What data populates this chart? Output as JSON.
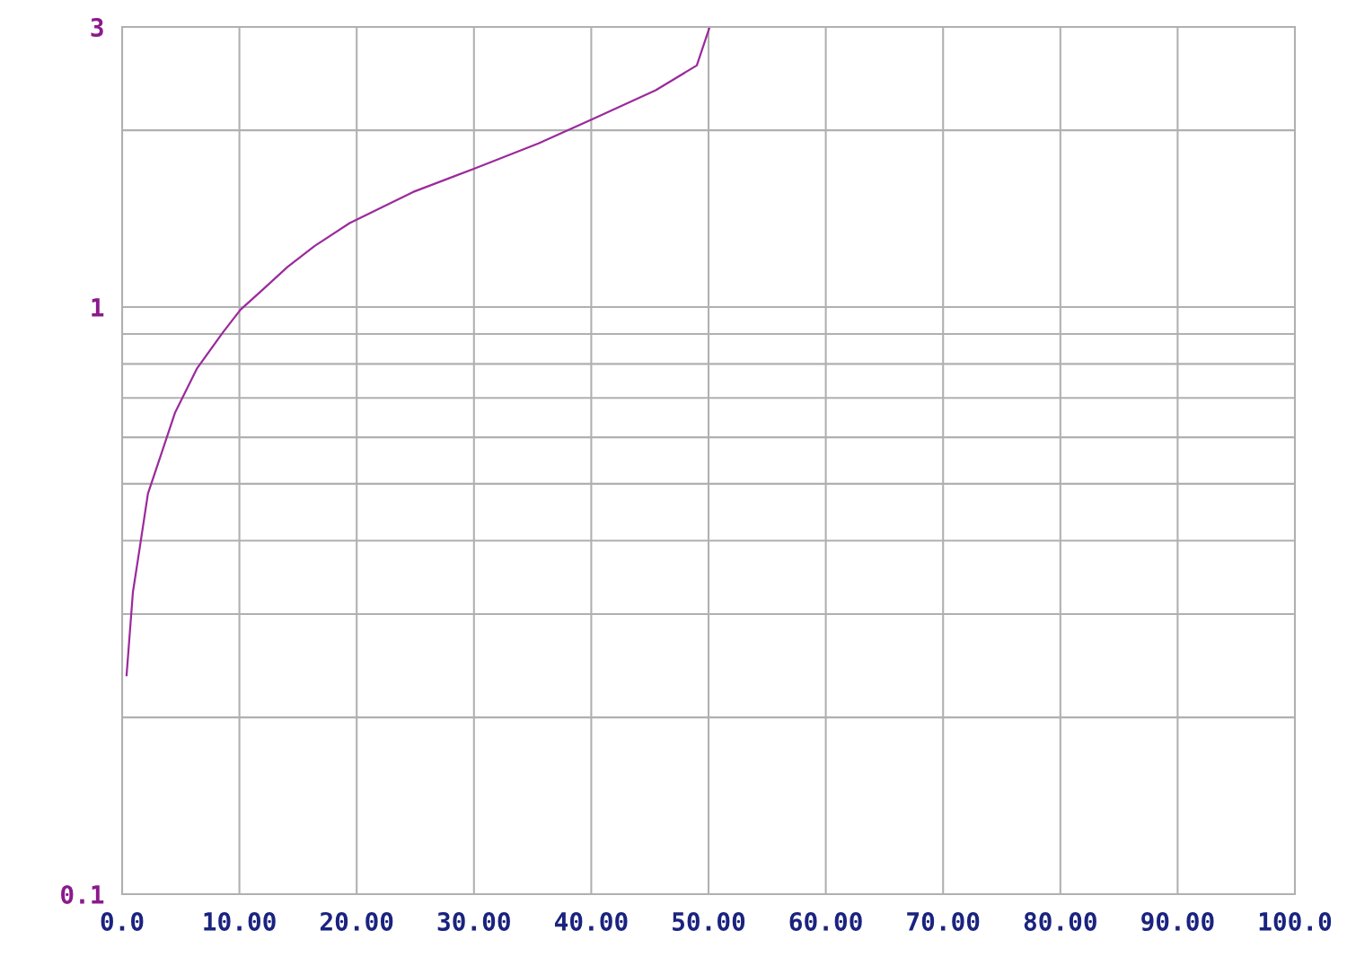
{
  "chart_data": {
    "type": "line",
    "log": "y",
    "grid": true,
    "marker": "none",
    "line_style": "solid",
    "x": [
      0.38,
      0.92,
      1.45,
      2.2,
      3.1,
      4.5,
      6.4,
      8.6,
      10.1,
      11.8,
      14.1,
      16.4,
      19.4,
      24.8,
      30.0,
      35.5,
      40.1,
      45.5,
      49.0,
      50.1
    ],
    "series": [
      {
        "color": "#9b2a9b",
        "values": [
          0.236,
          0.327,
          0.383,
          0.481,
          0.544,
          0.66,
          0.787,
          0.906,
          0.99,
          1.062,
          1.17,
          1.27,
          1.39,
          1.57,
          1.72,
          1.9,
          2.09,
          2.34,
          2.58,
          3.0
        ]
      }
    ],
    "xlim": [
      0,
      100
    ],
    "xticks": [
      {
        "value": 0,
        "label": "0.0"
      },
      {
        "value": 10,
        "label": "10.00"
      },
      {
        "value": 20,
        "label": "20.00"
      },
      {
        "value": 30,
        "label": "30.00"
      },
      {
        "value": 40,
        "label": "40.00"
      },
      {
        "value": 50,
        "label": "50.00"
      },
      {
        "value": 60,
        "label": "60.00"
      },
      {
        "value": 70,
        "label": "70.00"
      },
      {
        "value": 80,
        "label": "80.00"
      },
      {
        "value": 90,
        "label": "90.00"
      },
      {
        "value": 100,
        "label": "100.0"
      }
    ],
    "ylim": [
      0.1,
      3
    ],
    "yticks": [
      0.1,
      {
        "value": 0.2,
        "label": null
      },
      {
        "value": 0.3,
        "label": null
      },
      {
        "value": 0.4,
        "label": null
      },
      {
        "value": 0.5,
        "label": null
      },
      {
        "value": 0.6,
        "label": null
      },
      {
        "value": 0.7,
        "label": null
      },
      {
        "value": 0.8,
        "label": null
      },
      {
        "value": 0.9,
        "label": null
      },
      1,
      {
        "value": 2,
        "label": null
      },
      3
    ]
  }
}
